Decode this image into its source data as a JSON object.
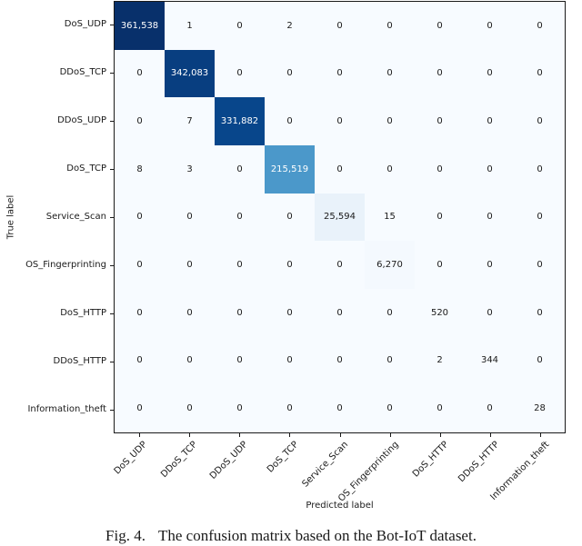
{
  "figure": {
    "caption_prefix": "Fig. 4.",
    "caption_text": "The confusion matrix based on the Bot-IoT dataset."
  },
  "chart_data": {
    "type": "heatmap",
    "title": "",
    "xlabel": "Predicted label",
    "ylabel": "True label",
    "categories": [
      "DoS_UDP",
      "DDoS_TCP",
      "DDoS_UDP",
      "DoS_TCP",
      "Service_Scan",
      "OS_Fingerprinting",
      "DoS_HTTP",
      "DDoS_HTTP",
      "Information_theft"
    ],
    "matrix": [
      [
        361538,
        1,
        0,
        2,
        0,
        0,
        0,
        0,
        0
      ],
      [
        0,
        342083,
        0,
        0,
        0,
        0,
        0,
        0,
        0
      ],
      [
        0,
        7,
        331882,
        0,
        0,
        0,
        0,
        0,
        0
      ],
      [
        8,
        3,
        0,
        215519,
        0,
        0,
        0,
        0,
        0
      ],
      [
        0,
        0,
        0,
        0,
        25594,
        15,
        0,
        0,
        0
      ],
      [
        0,
        0,
        0,
        0,
        0,
        6270,
        0,
        0,
        0
      ],
      [
        0,
        0,
        0,
        0,
        0,
        0,
        520,
        0,
        0
      ],
      [
        0,
        0,
        0,
        0,
        0,
        0,
        2,
        344,
        0
      ],
      [
        0,
        0,
        0,
        0,
        0,
        0,
        0,
        0,
        28
      ]
    ],
    "vmin": 0,
    "vmax": 361538,
    "colormap": "Blues",
    "color_stops": [
      "#f7fbff",
      "#deebf7",
      "#c6dbef",
      "#9ecae1",
      "#6baed6",
      "#4292c6",
      "#2171b5",
      "#08519c",
      "#08306b"
    ],
    "cell_text_color_light": "#1a1a1a",
    "cell_text_color_dark": "#ffffff",
    "axis_color": "#1a1a1a",
    "number_format": "thousands-comma",
    "grid": false,
    "legend": "none",
    "x_tick_rotation_deg": 45
  }
}
